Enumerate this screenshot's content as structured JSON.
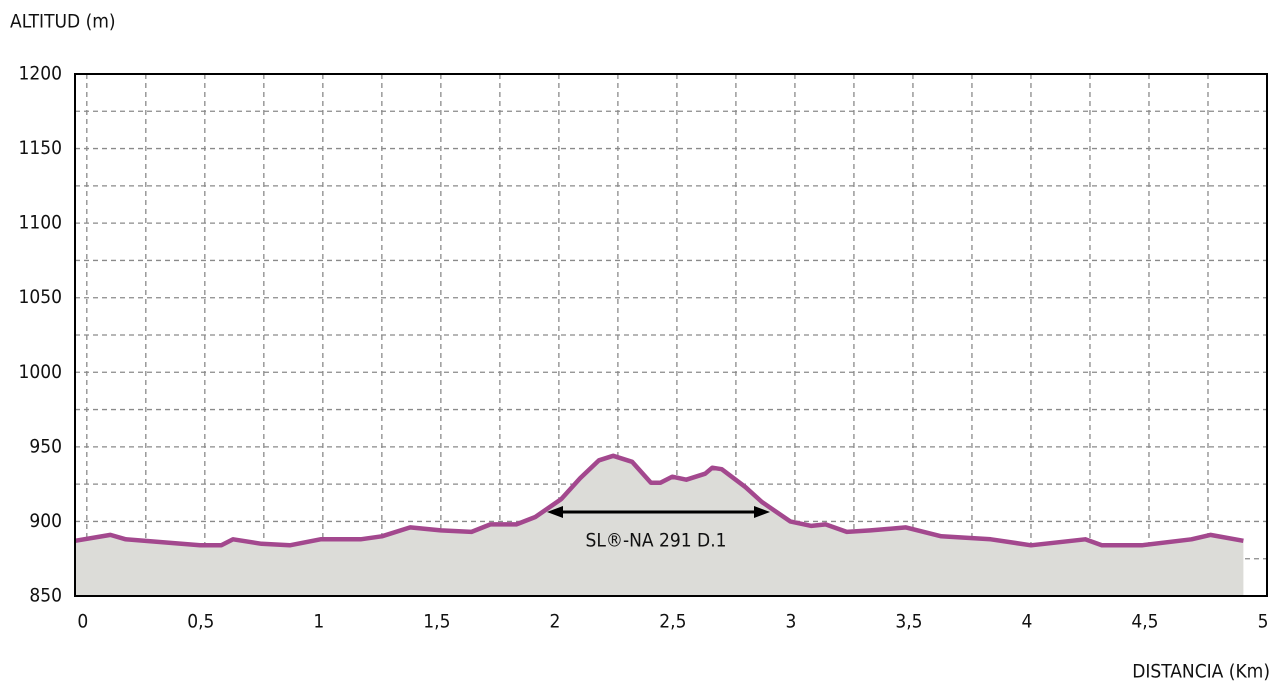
{
  "chart_data": {
    "type": "area",
    "y_label": "ALTITUD  (m)",
    "x_label": "DISTANCIA (Km)",
    "annotation": "SL®-NA 291 D.1",
    "x": [
      -0.05,
      0.1,
      0.165,
      0.48,
      0.57,
      0.62,
      0.74,
      0.86,
      0.99,
      1.16,
      1.25,
      1.37,
      1.5,
      1.63,
      1.71,
      1.82,
      1.9,
      2.01,
      2.09,
      2.17,
      2.23,
      2.31,
      2.39,
      2.43,
      2.48,
      2.54,
      2.62,
      2.65,
      2.69,
      2.79,
      2.86,
      2.98,
      3.07,
      3.13,
      3.22,
      3.32,
      3.47,
      3.62,
      3.83,
      4.0,
      4.23,
      4.3,
      4.47,
      4.68,
      4.76,
      4.9
    ],
    "values": [
      887,
      891,
      888,
      884,
      884,
      888,
      885,
      884,
      888,
      888,
      890,
      896,
      894,
      893,
      898,
      898,
      903,
      915,
      929,
      941,
      944,
      940,
      926,
      926,
      930,
      928,
      932,
      936,
      935,
      923,
      913,
      900,
      897,
      898,
      893,
      894,
      896,
      890,
      888,
      884,
      888,
      884,
      884,
      888,
      891,
      887
    ],
    "color": "#a3488e",
    "fill": "#dcdcd8",
    "xlim": [
      -0.05,
      5
    ],
    "ylim": [
      850,
      1200
    ],
    "xticks": [
      0,
      {
        "value": 0.5,
        "label": "0,5"
      },
      1,
      {
        "value": 1.5,
        "label": "1,5"
      },
      2,
      {
        "value": 2.5,
        "label": "2,5"
      },
      3,
      {
        "value": 3.5,
        "label": "3,5"
      },
      4,
      {
        "value": 4.5,
        "label": "4,5"
      },
      5
    ],
    "yticks": [
      850,
      900,
      950,
      1000,
      1050,
      1100,
      1150,
      1200
    ],
    "minor_xticks": [
      0.25,
      0.75,
      1.25,
      1.75,
      2.25,
      2.75,
      3.25,
      3.75,
      4.25,
      4.75
    ],
    "minor_yticks": [
      875,
      925,
      975,
      1025,
      1075,
      1125,
      1175
    ],
    "grid": true
  }
}
